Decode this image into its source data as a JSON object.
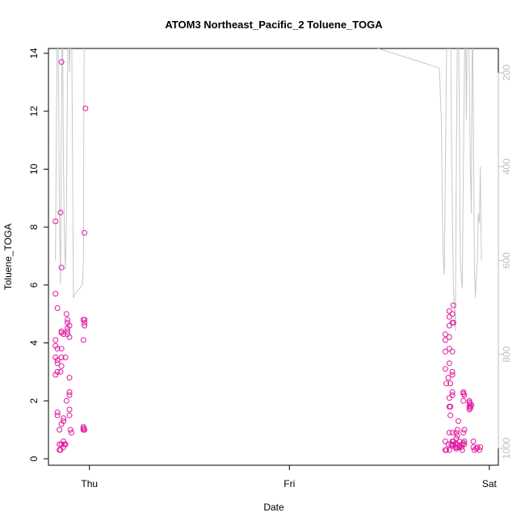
{
  "chart_data": {
    "type": "scatter",
    "title": "ATOM3 Northeast_Pacific_2 Toluene_TOGA",
    "xlabel": "Date",
    "ylabel": "Toluene_TOGA",
    "x_ticks": [
      "Thu",
      "Fri",
      "Sat"
    ],
    "x_tick_positions_days": [
      0,
      1,
      2
    ],
    "xlim_days": [
      -0.205,
      2.045
    ],
    "ylim": [
      0,
      14
    ],
    "y_ticks": [
      0,
      2,
      4,
      6,
      8,
      10,
      12,
      14
    ],
    "right_axis": {
      "ticks": [
        200,
        400,
        600,
        800,
        1000
      ],
      "lim": [
        55,
        1030
      ],
      "inverted": true,
      "color": "#bdbdbd"
    },
    "grid": false,
    "series": [
      {
        "color": "#e0189e",
        "marker": "open-circle",
        "points": [
          [
            -0.17,
            8.2
          ],
          [
            -0.17,
            5.7
          ],
          [
            -0.16,
            5.2
          ],
          [
            -0.17,
            4.1
          ],
          [
            -0.17,
            3.9
          ],
          [
            -0.17,
            3.5
          ],
          [
            -0.16,
            3.3
          ],
          [
            -0.16,
            3.0
          ],
          [
            -0.17,
            2.9
          ],
          [
            -0.16,
            1.6
          ],
          [
            -0.16,
            1.5
          ],
          [
            -0.15,
            1.0
          ],
          [
            -0.15,
            0.5
          ],
          [
            -0.15,
            0.3
          ],
          [
            -0.16,
            3.4
          ],
          [
            -0.16,
            3.8
          ],
          [
            -0.14,
            13.7
          ],
          [
            -0.145,
            8.5
          ],
          [
            -0.14,
            6.6
          ],
          [
            -0.14,
            4.4
          ],
          [
            -0.14,
            4.35
          ],
          [
            -0.13,
            4.3
          ],
          [
            -0.14,
            3.8
          ],
          [
            -0.14,
            3.5
          ],
          [
            -0.14,
            3.2
          ],
          [
            -0.145,
            3.0
          ],
          [
            -0.13,
            1.4
          ],
          [
            -0.14,
            1.2
          ],
          [
            -0.13,
            1.3
          ],
          [
            -0.14,
            0.5
          ],
          [
            -0.13,
            0.6
          ],
          [
            -0.13,
            0.4
          ],
          [
            -0.145,
            0.3
          ],
          [
            -0.115,
            5.0
          ],
          [
            -0.11,
            4.8
          ],
          [
            -0.11,
            4.7
          ],
          [
            -0.11,
            4.5
          ],
          [
            -0.1,
            4.6
          ],
          [
            -0.11,
            4.4
          ],
          [
            -0.11,
            4.3
          ],
          [
            -0.1,
            4.2
          ],
          [
            -0.12,
            3.5
          ],
          [
            -0.1,
            2.8
          ],
          [
            -0.1,
            2.3
          ],
          [
            -0.1,
            2.2
          ],
          [
            -0.115,
            2.0
          ],
          [
            -0.1,
            1.7
          ],
          [
            -0.1,
            1.5
          ],
          [
            -0.095,
            1.0
          ],
          [
            -0.09,
            0.9
          ],
          [
            -0.12,
            0.5
          ],
          [
            -0.125,
            0.5
          ],
          [
            -0.02,
            12.1
          ],
          [
            -0.025,
            7.8
          ],
          [
            -0.03,
            4.8
          ],
          [
            -0.025,
            4.8
          ],
          [
            -0.025,
            4.7
          ],
          [
            -0.025,
            4.6
          ],
          [
            -0.03,
            4.1
          ],
          [
            -0.03,
            1.1
          ],
          [
            -0.03,
            1.05
          ],
          [
            -0.03,
            1.0
          ],
          [
            -0.025,
            1.0
          ],
          [
            1.78,
            4.3
          ],
          [
            1.78,
            4.1
          ],
          [
            1.78,
            3.7
          ],
          [
            1.78,
            3.1
          ],
          [
            1.785,
            2.6
          ],
          [
            1.78,
            0.6
          ],
          [
            1.78,
            0.3
          ],
          [
            1.785,
            0.3
          ],
          [
            1.8,
            5.1
          ],
          [
            1.8,
            4.9
          ],
          [
            1.8,
            4.6
          ],
          [
            1.8,
            4.2
          ],
          [
            1.8,
            3.8
          ],
          [
            1.8,
            3.3
          ],
          [
            1.795,
            2.8
          ],
          [
            1.805,
            2.6
          ],
          [
            1.8,
            2.1
          ],
          [
            1.8,
            1.8
          ],
          [
            1.805,
            1.5
          ],
          [
            1.8,
            0.9
          ],
          [
            1.795,
            0.5
          ],
          [
            1.8,
            0.3
          ],
          [
            1.82,
            5.3
          ],
          [
            1.815,
            5.0
          ],
          [
            1.815,
            4.7
          ],
          [
            1.82,
            4.7
          ],
          [
            1.815,
            3.7
          ],
          [
            1.815,
            3.0
          ],
          [
            1.815,
            2.9
          ],
          [
            1.815,
            2.2
          ],
          [
            1.805,
            1.8
          ],
          [
            1.815,
            0.9
          ],
          [
            1.815,
            0.6
          ],
          [
            1.82,
            0.5
          ],
          [
            1.815,
            0.45
          ],
          [
            1.81,
            0.5
          ],
          [
            1.82,
            0.6
          ],
          [
            1.815,
            2.3
          ],
          [
            1.83,
            0.5
          ],
          [
            1.83,
            0.4
          ],
          [
            1.835,
            0.35
          ],
          [
            1.835,
            0.9
          ],
          [
            1.835,
            0.7
          ],
          [
            1.84,
            1.0
          ],
          [
            1.84,
            0.8
          ],
          [
            1.84,
            0.5
          ],
          [
            1.84,
            0.4
          ],
          [
            1.845,
            1.3
          ],
          [
            1.85,
            0.6
          ],
          [
            1.85,
            0.45
          ],
          [
            1.85,
            0.4
          ],
          [
            1.86,
            0.4
          ],
          [
            1.865,
            0.3
          ],
          [
            1.865,
            0.5
          ],
          [
            1.87,
            0.9
          ],
          [
            1.87,
            0.55
          ],
          [
            1.87,
            2.3
          ],
          [
            1.875,
            2.2
          ],
          [
            1.87,
            2.0
          ],
          [
            1.875,
            1.0
          ],
          [
            1.875,
            0.6
          ],
          [
            1.875,
            0.5
          ],
          [
            1.87,
            2.25
          ],
          [
            1.9,
            2.0
          ],
          [
            1.905,
            1.9
          ],
          [
            1.905,
            1.8
          ],
          [
            1.9,
            1.7
          ],
          [
            1.905,
            1.75
          ],
          [
            1.9,
            1.95
          ],
          [
            1.91,
            1.85
          ],
          [
            1.92,
            0.6
          ],
          [
            1.92,
            0.4
          ],
          [
            1.925,
            0.3
          ],
          [
            1.935,
            0.35
          ],
          [
            1.94,
            0.4
          ],
          [
            1.95,
            0.3
          ],
          [
            1.955,
            0.4
          ],
          [
            1.9,
            1.8
          ]
        ]
      },
      {
        "axis": "right",
        "color": "#c8c8c8",
        "marker": "line",
        "points": [
          [
            -0.17,
            600
          ],
          [
            -0.165,
            300
          ],
          [
            -0.16,
            50
          ],
          [
            -0.155,
            200
          ],
          [
            -0.15,
            500
          ],
          [
            -0.145,
            650
          ],
          [
            -0.14,
            300
          ],
          [
            -0.135,
            50
          ],
          [
            -0.13,
            400
          ],
          [
            -0.125,
            550
          ],
          [
            -0.12,
            620
          ],
          [
            -0.115,
            500
          ],
          [
            -0.11,
            200
          ],
          [
            -0.105,
            50
          ],
          [
            -0.1,
            200
          ],
          [
            -0.095,
            100
          ],
          [
            -0.09,
            50
          ],
          [
            -0.085,
            350
          ],
          [
            -0.08,
            680
          ],
          [
            -0.07,
            670
          ],
          [
            -0.05,
            660
          ],
          [
            -0.035,
            650
          ],
          [
            -0.03,
            600
          ],
          [
            -0.028,
            300
          ],
          [
            -0.026,
            120
          ],
          [
            -0.02,
            50
          ],
          [
            0.72,
            50
          ],
          [
            1.75,
            190
          ],
          [
            1.76,
            300
          ],
          [
            1.765,
            500
          ],
          [
            1.77,
            600
          ],
          [
            1.775,
            630
          ],
          [
            1.78,
            400
          ],
          [
            1.785,
            200
          ],
          [
            1.79,
            50
          ],
          [
            1.795,
            100
          ],
          [
            1.8,
            150
          ],
          [
            1.805,
            50
          ],
          [
            1.81,
            300
          ],
          [
            1.815,
            500
          ],
          [
            1.82,
            650
          ],
          [
            1.825,
            700
          ],
          [
            1.83,
            750
          ],
          [
            1.835,
            400
          ],
          [
            1.84,
            100
          ],
          [
            1.845,
            50
          ],
          [
            1.85,
            300
          ],
          [
            1.855,
            600
          ],
          [
            1.86,
            640
          ],
          [
            1.865,
            660
          ],
          [
            1.87,
            400
          ],
          [
            1.875,
            200
          ],
          [
            1.88,
            50
          ],
          [
            1.885,
            300
          ],
          [
            1.89,
            100
          ],
          [
            1.895,
            50
          ],
          [
            1.9,
            200
          ],
          [
            1.905,
            400
          ],
          [
            1.91,
            500
          ],
          [
            1.915,
            50
          ],
          [
            1.92,
            300
          ],
          [
            1.925,
            600
          ],
          [
            1.93,
            680
          ],
          [
            1.94,
            600
          ],
          [
            1.945,
            500
          ],
          [
            1.95,
            520
          ],
          [
            1.955,
            400
          ],
          [
            1.96,
            600
          ]
        ]
      }
    ]
  }
}
